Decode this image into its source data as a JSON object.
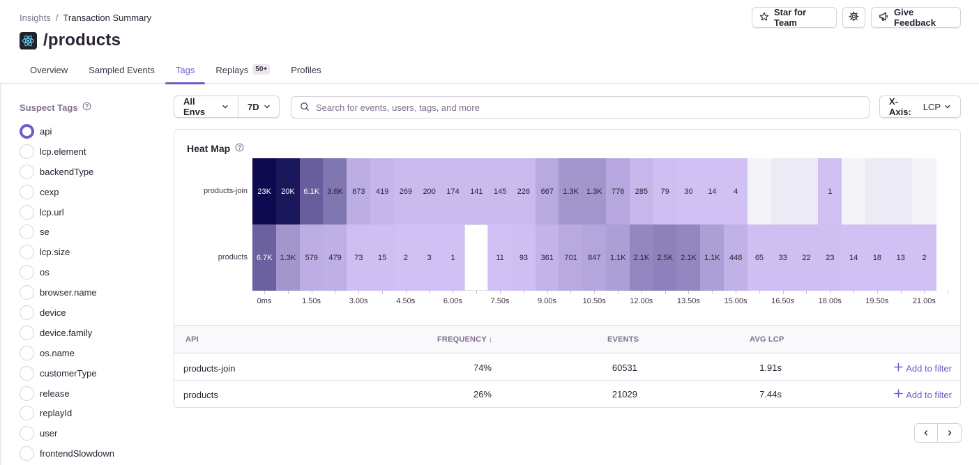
{
  "breadcrumb": [
    "Insights",
    "/",
    "Transaction Summary"
  ],
  "page_title": "/products",
  "header_buttons": {
    "star": "Star for Team",
    "feedback": "Give Feedback"
  },
  "tabs": [
    {
      "label": "Overview",
      "badge": "",
      "active": false
    },
    {
      "label": "Sampled Events",
      "badge": "",
      "active": false
    },
    {
      "label": "Tags",
      "badge": "",
      "active": true
    },
    {
      "label": "Replays",
      "badge": "50+",
      "active": false
    },
    {
      "label": "Profiles",
      "badge": "",
      "active": false
    }
  ],
  "sidebar": {
    "title": "Suspect Tags",
    "selected": "api",
    "tags": [
      "api",
      "lcp.element",
      "backendType",
      "cexp",
      "lcp.url",
      "se",
      "lcp.size",
      "os",
      "browser.name",
      "device",
      "device.family",
      "os.name",
      "customerType",
      "release",
      "replayId",
      "user",
      "frontendSlowdown"
    ]
  },
  "filters": {
    "env": "All Envs",
    "period": "7D"
  },
  "search": {
    "placeholder": "Search for events, users, tags, and more"
  },
  "xaxis": {
    "label": "X-Axis:",
    "value": "LCP"
  },
  "heatmap": {
    "title": "Heat Map",
    "colors": {
      "scale": [
        "#d4c4f7",
        "#0d0a4f"
      ],
      "empty": "#f4f3f7",
      "faint": "#eceaf4",
      "missing": "#ffffff"
    },
    "x_ticks": [
      "0ms",
      "1.50s",
      "3.00s",
      "4.50s",
      "6.00s",
      "7.50s",
      "9.00s",
      "10.50s",
      "12.00s",
      "13.50s",
      "15.00s",
      "16.50s",
      "18.00s",
      "19.50s",
      "21.00s"
    ]
  },
  "chart_data": {
    "type": "heatmap",
    "title": "Heat Map",
    "rows": [
      "products-join",
      "products"
    ],
    "x_bucket_start_seconds": 0,
    "x_bucket_width_seconds": 0.75,
    "bucket_count": 29,
    "cells": [
      [
        "23K",
        "20K",
        "6.1K",
        "3.6K",
        "873",
        "419",
        "269",
        "200",
        "174",
        "141",
        "145",
        "226",
        "667",
        "1.3K",
        "1.3K",
        "776",
        "285",
        "79",
        "30",
        "14",
        "4",
        "",
        "",
        "",
        "1",
        "",
        "",
        "",
        ""
      ],
      [
        "6.7K",
        "1.3K",
        "579",
        "479",
        "73",
        "15",
        "2",
        "3",
        "1",
        "",
        "11",
        "93",
        "361",
        "701",
        "847",
        "1.1K",
        "2.1K",
        "2.5K",
        "2.1K",
        "1.1K",
        "448",
        "65",
        "33",
        "22",
        "23",
        "14",
        "18",
        "13",
        "2"
      ]
    ],
    "intensity": [
      [
        1.0,
        0.93,
        0.55,
        0.42,
        0.12,
        0.08,
        0.05,
        0.05,
        0.05,
        0.05,
        0.05,
        0.05,
        0.14,
        0.25,
        0.25,
        0.15,
        0.07,
        0.03,
        0.02,
        0.02,
        0.02,
        -1,
        -2,
        -2,
        0.02,
        -1,
        -2,
        -2,
        -1
      ],
      [
        0.53,
        0.25,
        0.12,
        0.11,
        0.03,
        0.03,
        0.02,
        0.02,
        0.02,
        -3,
        0.02,
        0.03,
        0.09,
        0.14,
        0.16,
        0.2,
        0.33,
        0.36,
        0.33,
        0.2,
        0.1,
        0.03,
        0.03,
        0.03,
        0.03,
        0.02,
        0.02,
        0.02,
        0.02
      ]
    ]
  },
  "table": {
    "columns": [
      "API",
      "FREQUENCY ↓",
      "EVENTS",
      "AVG LCP"
    ],
    "rows": [
      {
        "name": "products-join",
        "frequency": "74%",
        "events": "60531",
        "avg": "1.91s",
        "action": "Add to filter"
      },
      {
        "name": "products",
        "frequency": "26%",
        "events": "21029",
        "avg": "7.44s",
        "action": "Add to filter"
      }
    ]
  }
}
